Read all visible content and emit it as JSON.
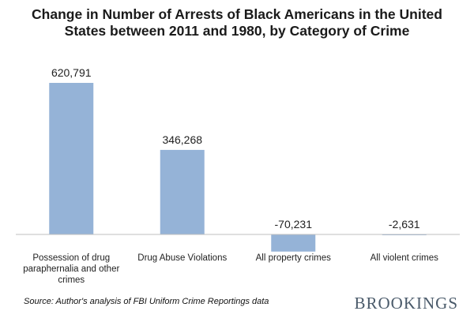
{
  "chart_data": {
    "type": "bar",
    "title": "Change in Number of Arrests of Black Americans in the United States between 2011 and 1980, by Category of Crime",
    "categories": [
      "Possession of drug paraphernalia and other crimes",
      "Drug Abuse Violations",
      "All property crimes",
      "All violent crimes"
    ],
    "category_lines": [
      [
        "Possession of drug",
        "paraphernalia and other",
        "crimes"
      ],
      [
        "Drug Abuse Violations"
      ],
      [
        "All property crimes"
      ],
      [
        "All violent crimes"
      ]
    ],
    "values": [
      620791,
      346268,
      -70231,
      -2631
    ],
    "data_labels": [
      "620,791",
      "346,268",
      "-70,231",
      "-2,631"
    ],
    "xlabel": "",
    "ylabel": "",
    "ylim": [
      -70231,
      620791
    ],
    "grid": false,
    "bar_color": "#95b3d7"
  },
  "footer": {
    "source": "Source: Author's analysis of FBI Uniform Crime Reportings data",
    "brand": "BROOKINGS"
  }
}
